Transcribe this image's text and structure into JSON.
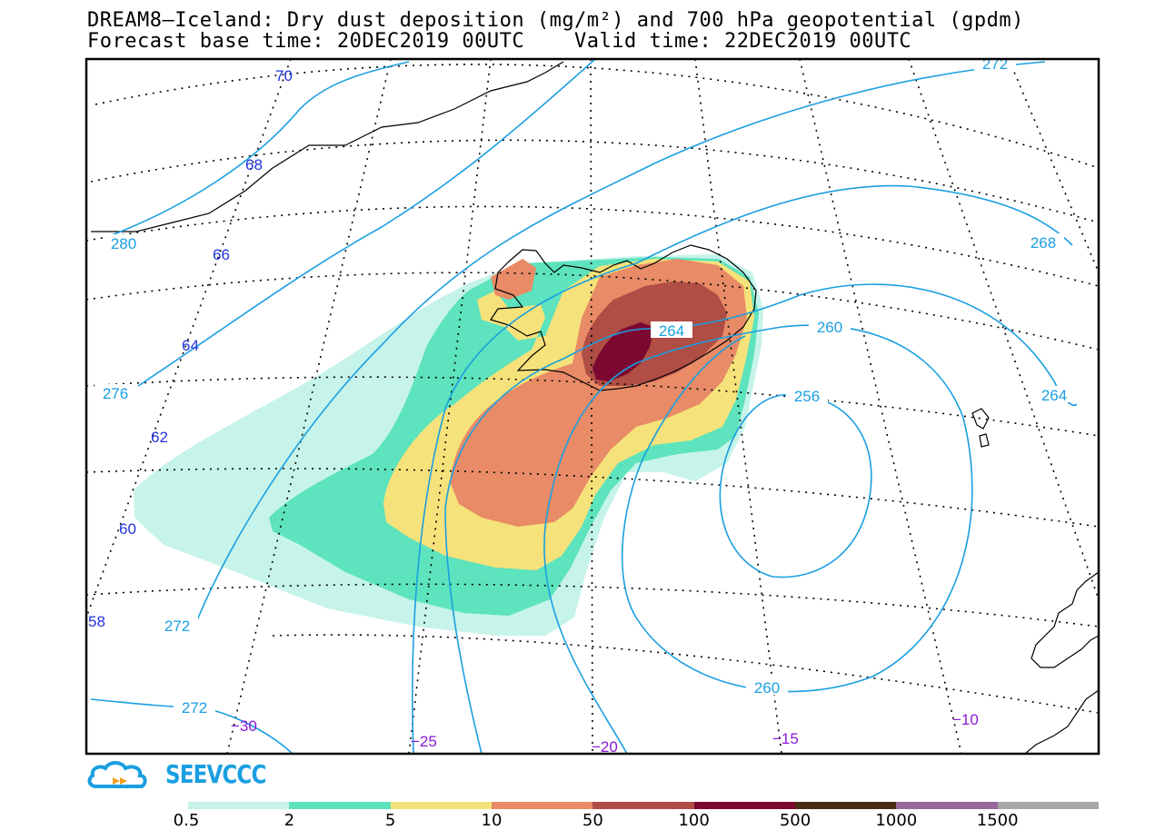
{
  "title": {
    "line1": "DREAM8–Iceland: Dry dust deposition (mg/m²) and 700 hPa geopotential (gpdm)",
    "line2": "Forecast base time: 20DEC2019 00UTC    Valid time: 22DEC2019 00UTC"
  },
  "logo": {
    "text": "SEEVCCC",
    "icon": "cloud-arrow-logo-icon"
  },
  "colors": {
    "c0_5": "#c6f3ea",
    "c2": "#5de3bd",
    "c5": "#f6e27a",
    "c10": "#e88b66",
    "c50": "#b04d44",
    "c100": "#7c0730",
    "c500": "#4a2b16",
    "c1000": "#97699c",
    "c1500": "#a8a8a8",
    "contour": "#1a9fe0",
    "lat_label": "#2233dd",
    "lon_label": "#8a1ad6"
  },
  "legend": {
    "labels": [
      "0.5",
      "2",
      "5",
      "10",
      "50",
      "100",
      "500",
      "1000",
      "1500"
    ],
    "colors": [
      "#c6f3ea",
      "#5de3bd",
      "#f6e27a",
      "#e88b66",
      "#b04d44",
      "#7c0730",
      "#4a2b16",
      "#97699c",
      "#a8a8a8"
    ]
  },
  "contour_labels": [
    "272",
    "268",
    "264",
    "264",
    "260",
    "260",
    "256",
    "280",
    "276",
    "272",
    "272"
  ],
  "latitude_labels": [
    "70",
    "68",
    "66",
    "64",
    "62",
    "60",
    "58"
  ],
  "longitude_labels": [
    "−30",
    "−25",
    "−20",
    "−15",
    "−10"
  ]
}
